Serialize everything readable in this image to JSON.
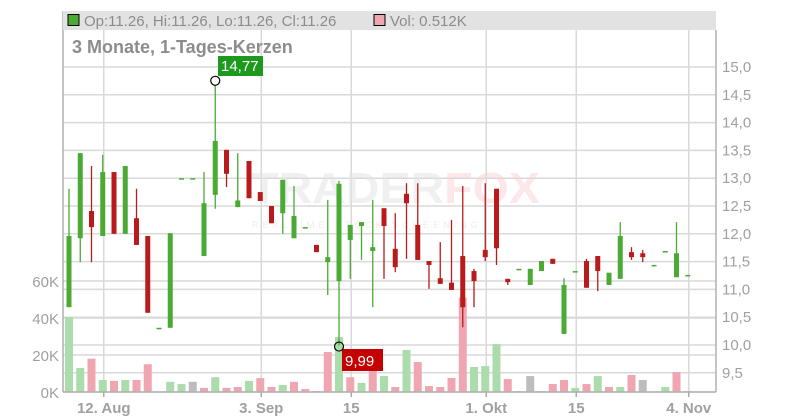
{
  "header": {
    "ohlc_text": "Op:11.26, Hi:11.26, Lo:11.26, Cl:11.26",
    "vol_text": "Vol: 0.512K"
  },
  "title": "3 Monate, 1-Tages-Kerzen",
  "logo": {
    "name": "TRADERFOX",
    "tagline": "REALTIME STOCK SCREENING"
  },
  "markers": {
    "high_label": "14,77",
    "low_label": "9,99"
  },
  "colors": {
    "up": "#4aaa33",
    "down": "#b71b1b",
    "vol_up": "#abdcab",
    "vol_down": "#f0a6b0",
    "vol_neutral": "#bdbdbd",
    "grid": "#d9d9d9",
    "high_label": "#1d9a1d",
    "low_label": "#c40000"
  },
  "chart_data": {
    "type": "candlestick",
    "title": "3 Monate, 1-Tages-Kerzen",
    "price_axis": {
      "range": [
        9.25,
        15.25
      ],
      "ticks": [
        "15,0",
        "14,5",
        "14,0",
        "13,5",
        "13,0",
        "12,5",
        "12,0",
        "11,5",
        "11,0",
        "10,5",
        "10,0",
        "9,5"
      ],
      "tick_values": [
        15,
        14.5,
        14,
        13.5,
        13,
        12.5,
        12,
        11.5,
        11,
        10.5,
        10,
        9.5
      ],
      "position": "right"
    },
    "volume_axis": {
      "ticks": [
        "60K",
        "40K",
        "20K",
        "0K"
      ],
      "tick_values": [
        60,
        40,
        20,
        0
      ],
      "unit": "K",
      "position": "left"
    },
    "x_ticks": [
      {
        "label": "12. Aug",
        "index": 3
      },
      {
        "label": "3. Sep",
        "index": 17
      },
      {
        "label": "15",
        "index": 25
      },
      {
        "label": "1. Okt",
        "index": 37
      },
      {
        "label": "15",
        "index": 45
      },
      {
        "label": "4. Nov",
        "index": 55
      }
    ],
    "grid": true,
    "candle_fields": [
      "open",
      "high",
      "low",
      "close",
      "volume_k",
      "volume_color"
    ],
    "candles": [
      [
        10.68,
        12.81,
        10.68,
        11.96,
        40.5,
        "g"
      ],
      [
        11.92,
        13.45,
        11.49,
        13.45,
        13,
        "g"
      ],
      [
        12.41,
        13.22,
        11.49,
        12.12,
        18,
        "r"
      ],
      [
        11.96,
        13.42,
        11.96,
        13.11,
        6.5,
        "g"
      ],
      [
        13.11,
        13.11,
        12.0,
        12.0,
        6,
        "r"
      ],
      [
        12.0,
        13.22,
        12.0,
        13.22,
        6.5,
        "g"
      ],
      [
        12.28,
        12.81,
        11.8,
        11.8,
        6.5,
        "r"
      ],
      [
        11.96,
        11.96,
        10.58,
        10.58,
        15,
        "r"
      ],
      [
        10.31,
        10.31,
        10.31,
        10.31,
        0,
        "g"
      ],
      [
        10.31,
        12.01,
        10.31,
        12.01,
        5.5,
        "g"
      ],
      [
        13.0,
        13.0,
        13.0,
        13.0,
        4.3,
        "g"
      ],
      [
        13.0,
        13.0,
        13.0,
        13.0,
        5.5,
        "n"
      ],
      [
        11.6,
        13.11,
        11.6,
        12.55,
        2.2,
        "r"
      ],
      [
        12.7,
        14.77,
        12.45,
        13.67,
        8,
        "g"
      ],
      [
        13.51,
        13.51,
        12.84,
        13.08,
        2.2,
        "r"
      ],
      [
        12.48,
        13.45,
        12.48,
        12.6,
        2.7,
        "r"
      ],
      [
        13.31,
        13.31,
        12.64,
        12.64,
        6,
        "g"
      ],
      [
        12.75,
        12.75,
        12.59,
        12.59,
        7.5,
        "r"
      ],
      [
        12.5,
        12.5,
        12.19,
        12.19,
        2.7,
        "r"
      ],
      [
        12.37,
        12.97,
        12.0,
        12.97,
        3.8,
        "g"
      ],
      [
        11.92,
        12.86,
        11.92,
        12.32,
        5.5,
        "r"
      ],
      [
        12.12,
        12.12,
        12.12,
        12.12,
        1.6,
        "r"
      ],
      [
        11.8,
        11.8,
        11.67,
        11.67,
        0.5,
        "r"
      ],
      [
        11.49,
        12.61,
        10.9,
        11.58,
        21.6,
        "r"
      ],
      [
        11.15,
        12.95,
        9.99,
        12.9,
        29.7,
        "g"
      ],
      [
        11.89,
        12.16,
        11.19,
        12.16,
        8,
        "r"
      ],
      [
        12.14,
        12.21,
        11.53,
        12.21,
        4.9,
        "g"
      ],
      [
        11.69,
        12.61,
        10.68,
        11.76,
        14.6,
        "r"
      ],
      [
        12.46,
        12.46,
        11.19,
        12.14,
        8.6,
        "g"
      ],
      [
        11.73,
        12.37,
        11.31,
        11.4,
        2.7,
        "r"
      ],
      [
        12.72,
        12.91,
        11.55,
        12.55,
        22.7,
        "g"
      ],
      [
        12.16,
        12.91,
        11.53,
        11.53,
        16.2,
        "r"
      ],
      [
        11.51,
        11.51,
        11.01,
        11.44,
        3.2,
        "r"
      ],
      [
        11.2,
        11.85,
        11.1,
        11.1,
        2.7,
        "r"
      ],
      [
        11.12,
        12.25,
        10.99,
        10.99,
        7.6,
        "r"
      ],
      [
        11.6,
        12.86,
        10.32,
        10.68,
        51,
        "r"
      ],
      [
        11.33,
        11.37,
        10.68,
        11.15,
        13.5,
        "g"
      ],
      [
        11.71,
        12.91,
        11.51,
        11.58,
        14,
        "g"
      ],
      [
        12.81,
        12.81,
        11.44,
        11.74,
        25.9,
        "g"
      ],
      [
        11.19,
        11.19,
        11.08,
        11.13,
        7,
        "r"
      ],
      [
        11.37,
        11.37,
        11.37,
        11.37,
        0.5,
        "g"
      ],
      [
        11.08,
        11.37,
        11.08,
        11.37,
        8.6,
        "n"
      ],
      [
        11.33,
        11.51,
        11.33,
        11.51,
        0.5,
        "g"
      ],
      [
        11.55,
        11.55,
        11.46,
        11.46,
        4.3,
        "r"
      ],
      [
        10.2,
        11.2,
        10.2,
        11.08,
        6.5,
        "r"
      ],
      [
        11.33,
        11.33,
        11.33,
        11.33,
        2.2,
        "g"
      ],
      [
        11.51,
        11.55,
        11.03,
        11.03,
        4.3,
        "r"
      ],
      [
        11.6,
        11.6,
        10.97,
        11.33,
        8.6,
        "g"
      ],
      [
        11.08,
        11.3,
        11.08,
        11.3,
        2.7,
        "r"
      ],
      [
        11.19,
        12.21,
        11.19,
        11.96,
        2.7,
        "g"
      ],
      [
        11.67,
        11.76,
        11.53,
        11.58,
        9.2,
        "r"
      ],
      [
        11.65,
        11.71,
        11.49,
        11.58,
        6.5,
        "n"
      ],
      [
        11.44,
        11.44,
        11.44,
        11.44,
        0,
        "g"
      ],
      [
        11.69,
        11.69,
        11.69,
        11.69,
        2.7,
        "g"
      ],
      [
        11.22,
        12.21,
        11.22,
        11.65,
        10.8,
        "r"
      ],
      [
        11.26,
        11.26,
        11.26,
        11.26,
        0.512,
        "r"
      ]
    ],
    "high_point": {
      "value": 14.77,
      "index": 13
    },
    "low_point": {
      "value": 9.99,
      "index": 24
    }
  }
}
